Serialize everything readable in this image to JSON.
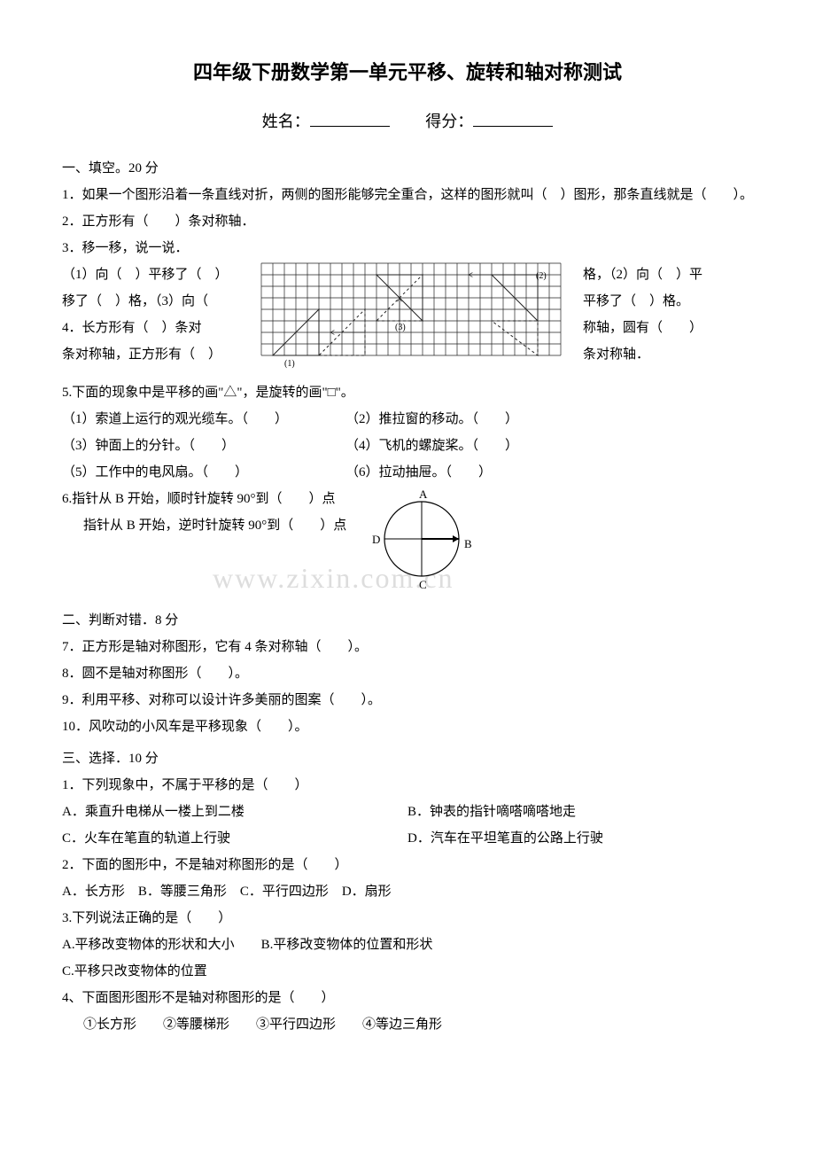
{
  "title": "四年级下册数学第一单元平移、旋转和轴对称测试",
  "name_label": "姓名：",
  "score_label": "得分：",
  "s1": {
    "head": "一、填空。20 分",
    "q1": "1．如果一个图形沿着一条直线对折，两侧的图形能够完全重合，这样的图形就叫（　）图形，那条直线就是（　　）。",
    "q2": "2．正方形有（　　）条对称轴．",
    "q3": "3．移一移，说一说．",
    "q3_1a": "（1）向（　）平移了（　）",
    "q3_1b": "格，（2）向（　）平",
    "q3_2a": "移了（　）格，（3）向（",
    "q3_2b": "平移了（　）格。",
    "q3_4a": "4．长方形有（　）条对",
    "q3_4b": "称轴，圆有（　　）",
    "q3_5a": "条对称轴，正方形有（　）",
    "q3_5b": "条对称轴．",
    "q5": "5.下面的现象中是平移的画\"△\"，是旋转的画\"□\"。",
    "q5_1": "（1）索道上运行的观光缆车。（　　）",
    "q5_2": "（2）推拉窗的移动。（　　）",
    "q5_3": "（3）钟面上的分针。（　　）",
    "q5_4": "（4）飞机的螺旋桨。（　　）",
    "q5_5": "（5）工作中的电风扇。（　　）",
    "q5_6": "（6）拉动抽屉。（　　）",
    "q6a": "6.指针从 B 开始，顺时针旋转 90°到（　　）点",
    "q6b": "指针从 B 开始，逆时针旋转 90°到（　　）点",
    "labelA": "A",
    "labelB": "B",
    "labelC": "C",
    "labelD": "D"
  },
  "s2": {
    "head": "二、判断对错．8 分",
    "q7": "7．正方形是轴对称图形，它有 4 条对称轴（　　）。",
    "q8": "8．圆不是轴对称图形（　　）。",
    "q9": "9．利用平移、对称可以设计许多美丽的图案（　　）。",
    "q10": "10．风吹动的小风车是平移现象（　　）。"
  },
  "s3": {
    "head": "三、选择．10 分",
    "q1": "1．下列现象中，不属于平移的是（　　）",
    "q1a": "A．乘直升电梯从一楼上到二楼",
    "q1b": "B．钟表的指针嘀嗒嘀嗒地走",
    "q1c": "C．火车在笔直的轨道上行驶",
    "q1d": "D．汽车在平坦笔直的公路上行驶",
    "q2": "2．下面的图形中，不是轴对称图形的是（　　）",
    "q2a": "A．长方形　B．等腰三角形　C．平行四边形　D．扇形",
    "q3": "3.下列说法正确的是（　　）",
    "q3a": "A.平移改变物体的形状和大小　　B.平移改变物体的位置和形状",
    "q3c": "C.平移只改变物体的位置",
    "q4": "4、下面图形图形不是轴对称图形的是（　　）",
    "q4opts": "①长方形　　②等腰梯形　　③平行四边形　　④等边三角形"
  },
  "watermark": "www.zixin.com.cn",
  "grid": {
    "cols": 26,
    "rows": 8,
    "cell": 13,
    "bg": "#ffffff",
    "line": "#222222",
    "dash": "3,3",
    "label1": "(1)",
    "label2": "(2)",
    "label3": "(3)"
  },
  "circle": {
    "r": 42,
    "stroke": "#000000",
    "fill": "none"
  }
}
